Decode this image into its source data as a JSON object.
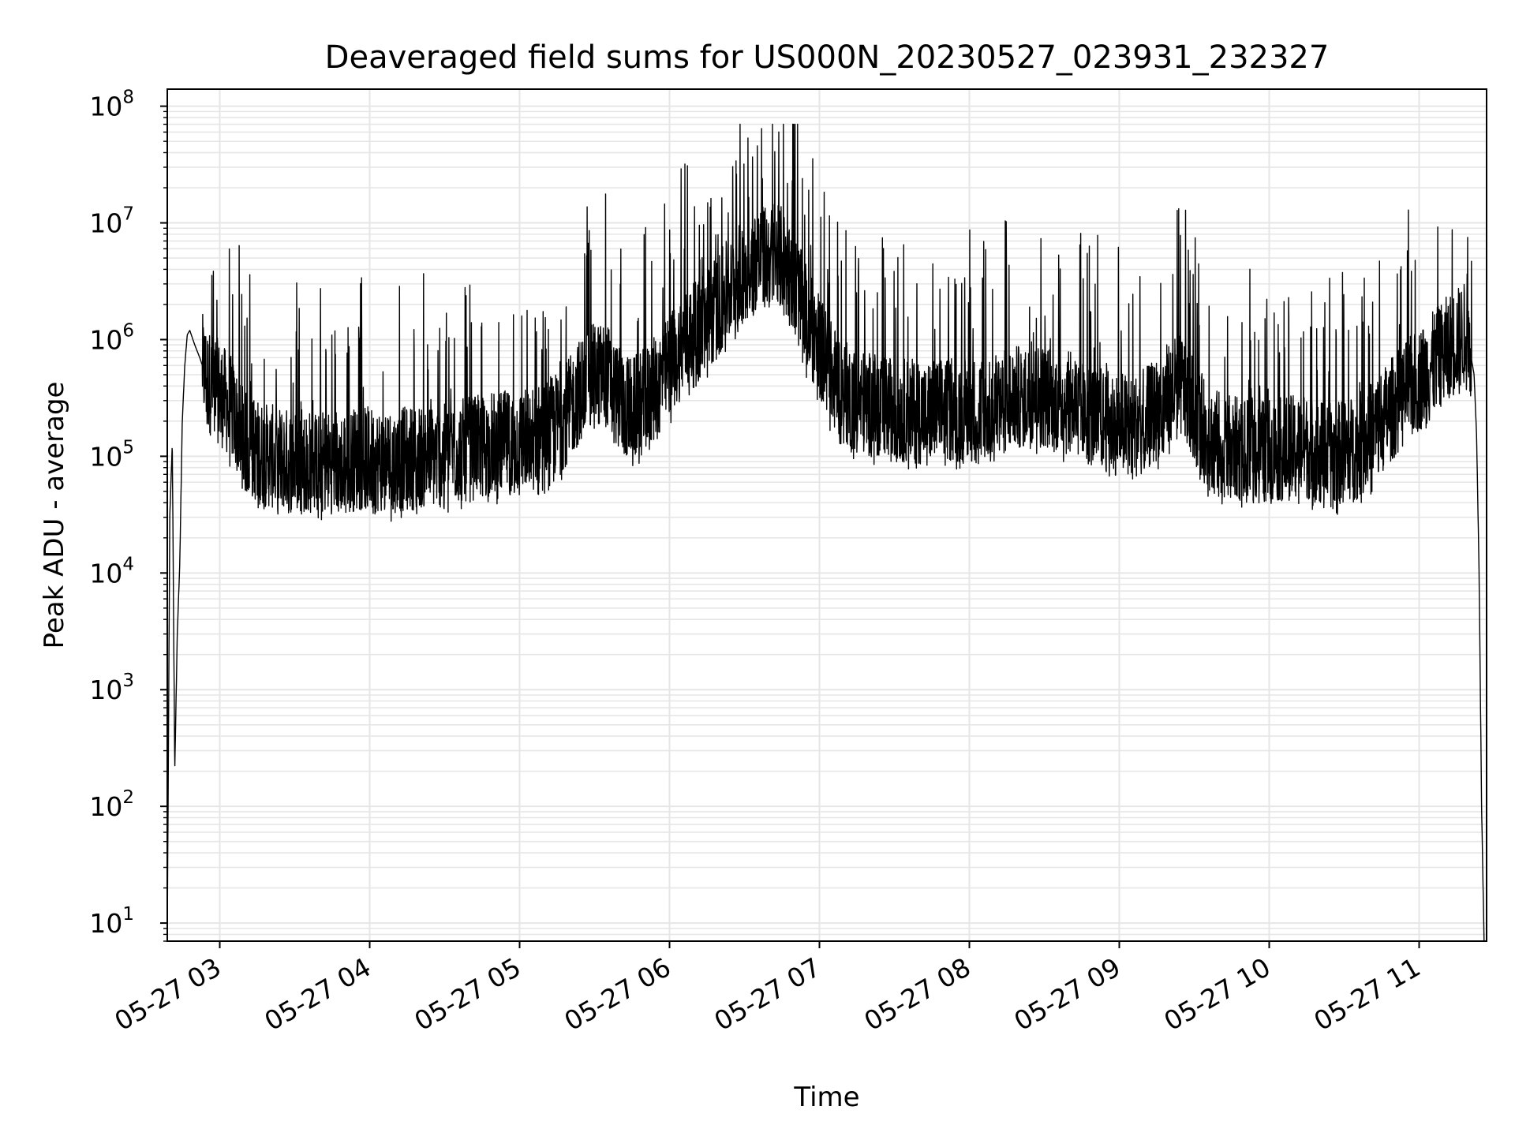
{
  "chart_data": {
    "type": "line",
    "title": "Deaveraged field sums for US000N_20230527_023931_232327",
    "xlabel": "Time",
    "ylabel": "Peak ADU - average",
    "yscale": "log",
    "ylim": [
      7,
      140000000
    ],
    "xlim": [
      "05-27 02:39",
      "05-27 11:27"
    ],
    "grid": true,
    "line_color": "#000000",
    "grid_color": "#e6e6e6",
    "x_ticks": [
      "05-27 03",
      "05-27 04",
      "05-27 05",
      "05-27 06",
      "05-27 07",
      "05-27 08",
      "05-27 09",
      "05-27 10",
      "05-27 11"
    ],
    "y_ticks": [
      {
        "base": "10",
        "exp": "1"
      },
      {
        "base": "10",
        "exp": "2"
      },
      {
        "base": "10",
        "exp": "3"
      },
      {
        "base": "10",
        "exp": "4"
      },
      {
        "base": "10",
        "exp": "5"
      },
      {
        "base": "10",
        "exp": "6"
      },
      {
        "base": "10",
        "exp": "7"
      },
      {
        "base": "10",
        "exp": "8"
      }
    ],
    "series": [
      {
        "x": [
          "05-27 02:39",
          "05-27 02:40",
          "05-27 02:41",
          "05-27 02:42",
          "05-27 02:43",
          "05-27 02:44",
          "05-27 02:45",
          "05-27 02:46",
          "05-27 02:47",
          "05-27 02:48",
          "05-27 02:50",
          "05-27 02:52",
          "05-27 02:55",
          "05-27 03:00",
          "05-27 03:05",
          "05-27 03:10",
          "05-27 03:15",
          "05-27 03:20",
          "05-27 03:25",
          "05-27 03:30",
          "05-27 03:35",
          "05-27 03:40",
          "05-27 03:45",
          "05-27 03:50",
          "05-27 03:55",
          "05-27 04:00",
          "05-27 04:05",
          "05-27 04:10",
          "05-27 04:15",
          "05-27 04:20",
          "05-27 04:25",
          "05-27 04:30",
          "05-27 04:35",
          "05-27 04:40",
          "05-27 04:45",
          "05-27 04:50",
          "05-27 04:55",
          "05-27 05:00",
          "05-27 05:05",
          "05-27 05:10",
          "05-27 05:15",
          "05-27 05:20",
          "05-27 05:25",
          "05-27 05:30",
          "05-27 05:35",
          "05-27 05:40",
          "05-27 05:45",
          "05-27 05:50",
          "05-27 05:55",
          "05-27 06:00",
          "05-27 06:05",
          "05-27 06:10",
          "05-27 06:15",
          "05-27 06:20",
          "05-27 06:25",
          "05-27 06:30",
          "05-27 06:35",
          "05-27 06:40",
          "05-27 06:45",
          "05-27 06:50",
          "05-27 06:55",
          "05-27 07:00",
          "05-27 07:05",
          "05-27 07:10",
          "05-27 07:15",
          "05-27 07:20",
          "05-27 07:25",
          "05-27 07:30",
          "05-27 07:35",
          "05-27 07:40",
          "05-27 07:45",
          "05-27 07:50",
          "05-27 07:55",
          "05-27 08:00",
          "05-27 08:05",
          "05-27 08:10",
          "05-27 08:15",
          "05-27 08:20",
          "05-27 08:25",
          "05-27 08:30",
          "05-27 08:35",
          "05-27 08:40",
          "05-27 08:45",
          "05-27 08:50",
          "05-27 08:55",
          "05-27 09:00",
          "05-27 09:05",
          "05-27 09:10",
          "05-27 09:15",
          "05-27 09:20",
          "05-27 09:25",
          "05-27 09:30",
          "05-27 09:35",
          "05-27 09:40",
          "05-27 09:45",
          "05-27 09:50",
          "05-27 09:55",
          "05-27 10:00",
          "05-27 10:05",
          "05-27 10:10",
          "05-27 10:15",
          "05-27 10:20",
          "05-27 10:25",
          "05-27 10:30",
          "05-27 10:35",
          "05-27 10:40",
          "05-27 10:45",
          "05-27 10:50",
          "05-27 10:55",
          "05-27 11:00",
          "05-27 11:05",
          "05-27 11:10",
          "05-27 11:15",
          "05-27 11:18",
          "05-27 11:20",
          "05-27 11:22",
          "05-27 11:23",
          "05-27 11:24",
          "05-27 11:25",
          "05-27 11:26"
        ],
        "y": [
          7,
          30000,
          130000,
          200,
          3000,
          12000,
          200000,
          600000,
          1100000,
          1200000,
          900000,
          700000,
          450000,
          350000,
          250000,
          130000,
          110000,
          100000,
          95000,
          90000,
          90000,
          88000,
          90000,
          92000,
          95000,
          95000,
          92000,
          92000,
          95000,
          100000,
          100000,
          100000,
          110000,
          115000,
          120000,
          130000,
          130000,
          135000,
          140000,
          160000,
          190000,
          250000,
          400000,
          500000,
          500000,
          300000,
          250000,
          300000,
          400000,
          600000,
          900000,
          1100000,
          1500000,
          2000000,
          3000000,
          4000000,
          5000000,
          5000000,
          5000000,
          3000000,
          1500000,
          900000,
          500000,
          350000,
          300000,
          280000,
          260000,
          250000,
          250000,
          240000,
          240000,
          250000,
          250000,
          250000,
          260000,
          280000,
          300000,
          320000,
          330000,
          330000,
          300000,
          280000,
          250000,
          220000,
          200000,
          190000,
          180000,
          200000,
          250000,
          350000,
          400000,
          250000,
          150000,
          130000,
          120000,
          110000,
          110000,
          110000,
          115000,
          120000,
          120000,
          110000,
          100000,
          110000,
          120000,
          150000,
          200000,
          270000,
          350000,
          450000,
          600000,
          800000,
          1000000,
          1100000,
          900000,
          500000,
          150000,
          10000,
          100,
          7
        ]
      }
    ],
    "spikes_summary": "dense high-frequency fluctuations between about 5e4 and 2e6, with spikes up to about 6.5e7 near 05-27 06:45"
  }
}
